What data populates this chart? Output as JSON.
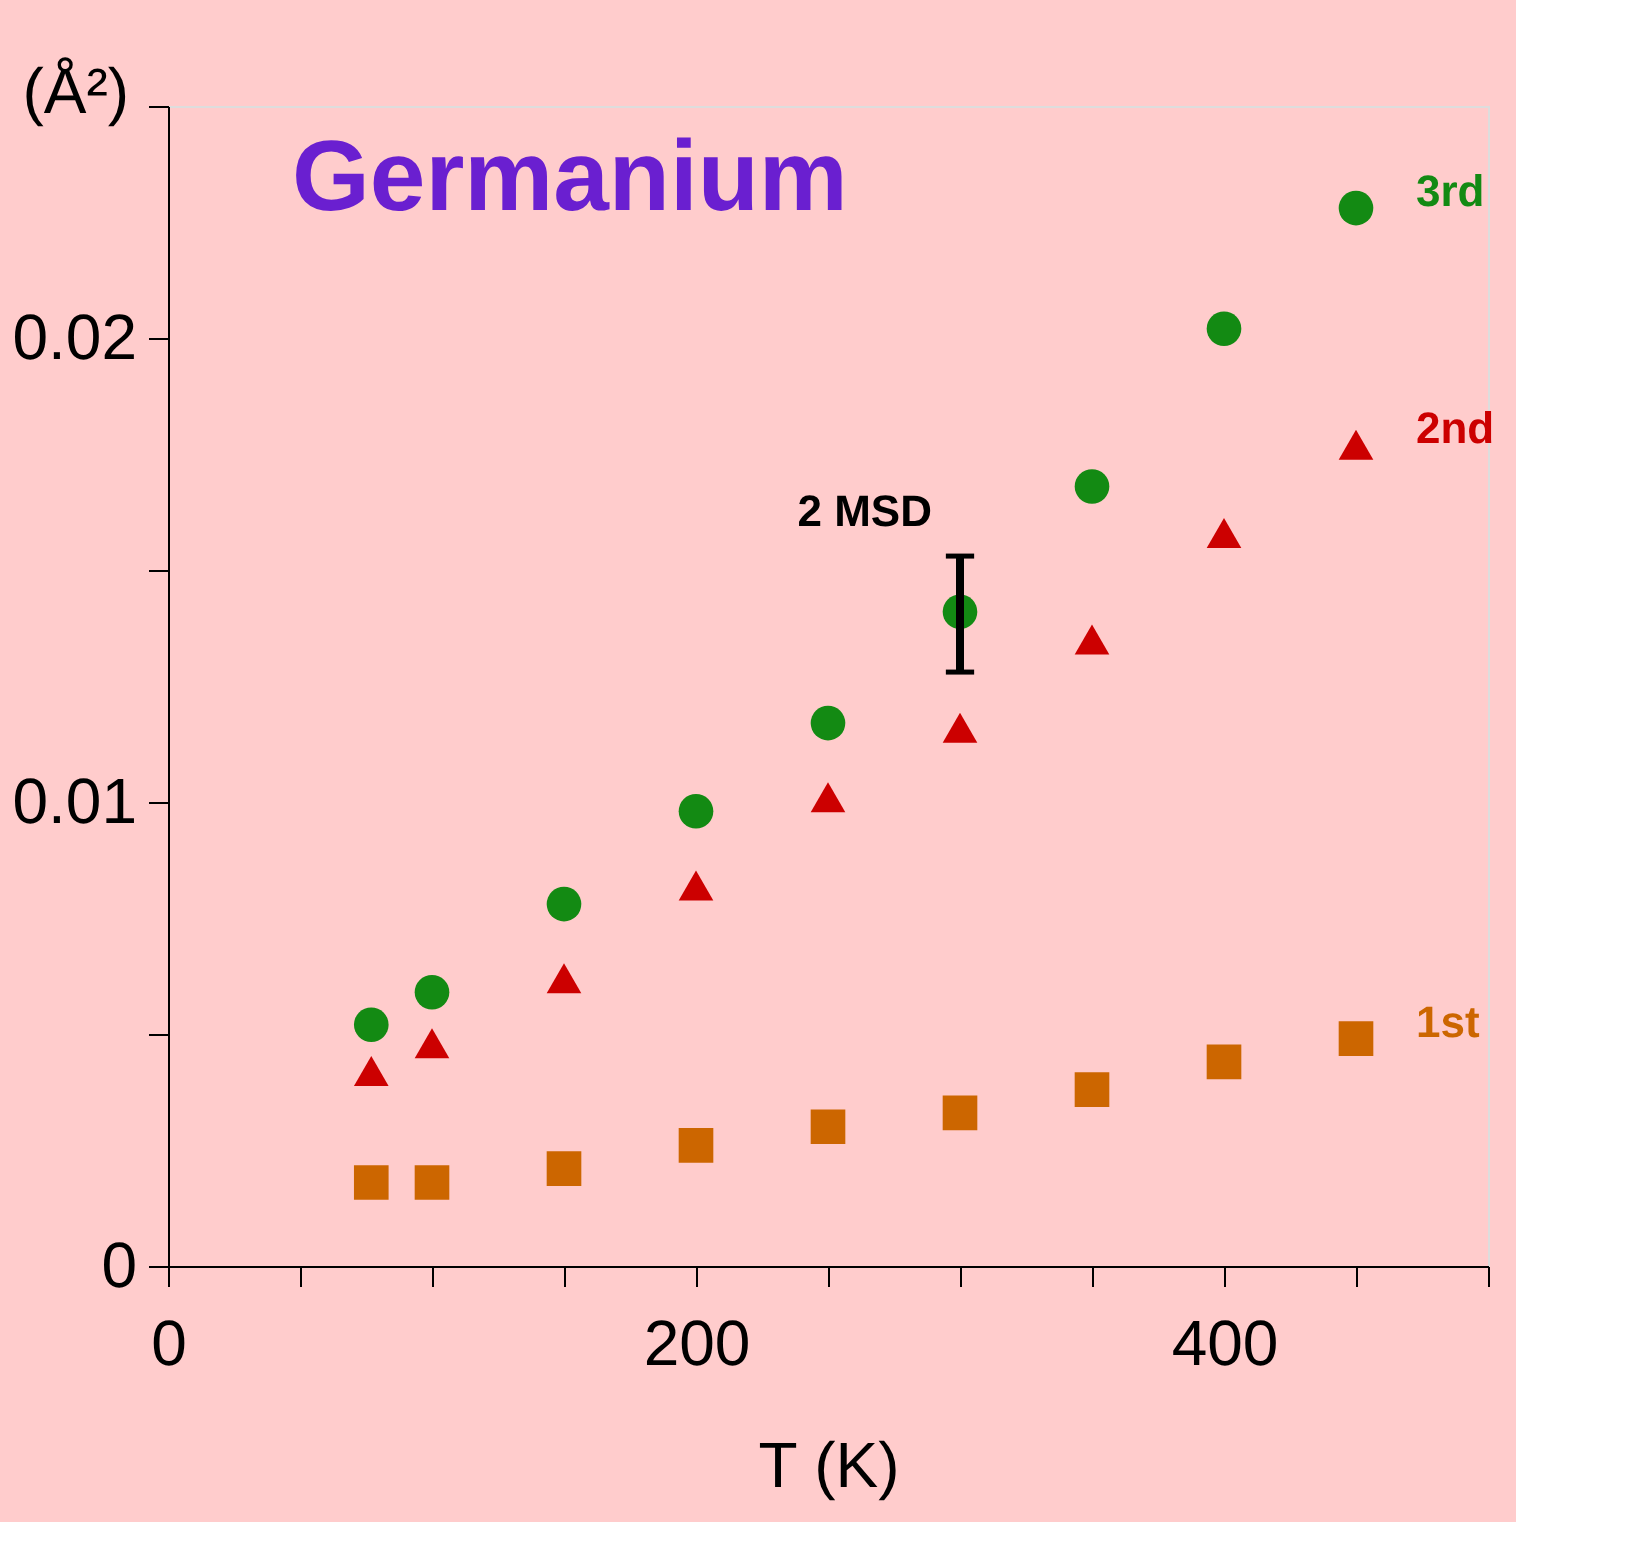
{
  "chart_data": {
    "type": "scatter",
    "title": "Germanium",
    "xlabel": "T (K)",
    "ylabel": "(Å²)",
    "x": [
      77,
      100,
      150,
      200,
      250,
      300,
      350,
      400,
      450
    ],
    "series": [
      {
        "name": "3rd",
        "color": "#138a13",
        "marker": "circle",
        "values": [
          0.0052,
          0.0059,
          0.0078,
          0.0098,
          0.0117,
          0.0141,
          0.0168,
          0.0202,
          0.0228
        ],
        "errors": [
          null,
          null,
          null,
          null,
          null,
          [
            0.0128,
            0.0153
          ],
          null,
          null,
          null
        ]
      },
      {
        "name": "2nd",
        "color": "#cc0000",
        "marker": "triangle",
        "values": [
          0.0042,
          0.0048,
          0.0062,
          0.0082,
          0.0101,
          0.0116,
          0.0135,
          0.0158,
          0.0177
        ]
      },
      {
        "name": "1st",
        "color": "#cc6600",
        "marker": "square",
        "values": [
          0.0018,
          0.0018,
          0.0021,
          0.0026,
          0.003,
          0.0033,
          0.0038,
          0.0044,
          0.0049
        ]
      }
    ],
    "annotations": [
      "2 MSD"
    ],
    "xlim": [
      0,
      500
    ],
    "ylim": [
      0,
      0.025
    ],
    "xticks": [
      0,
      {
        "value": 50,
        "label": null
      },
      {
        "value": 100,
        "label": null
      },
      {
        "value": 150,
        "label": null
      },
      200,
      {
        "value": 250,
        "label": null
      },
      {
        "value": 300,
        "label": null
      },
      {
        "value": 350,
        "label": null
      },
      400,
      {
        "value": 450,
        "label": null
      },
      {
        "value": 500,
        "label": null
      }
    ],
    "yticks": [
      0,
      {
        "value": 0.005,
        "label": null
      },
      0.01,
      {
        "value": 0.015,
        "label": null
      },
      0.02,
      {
        "value": 0.025,
        "label": null
      }
    ],
    "grid": false,
    "legend": false
  }
}
